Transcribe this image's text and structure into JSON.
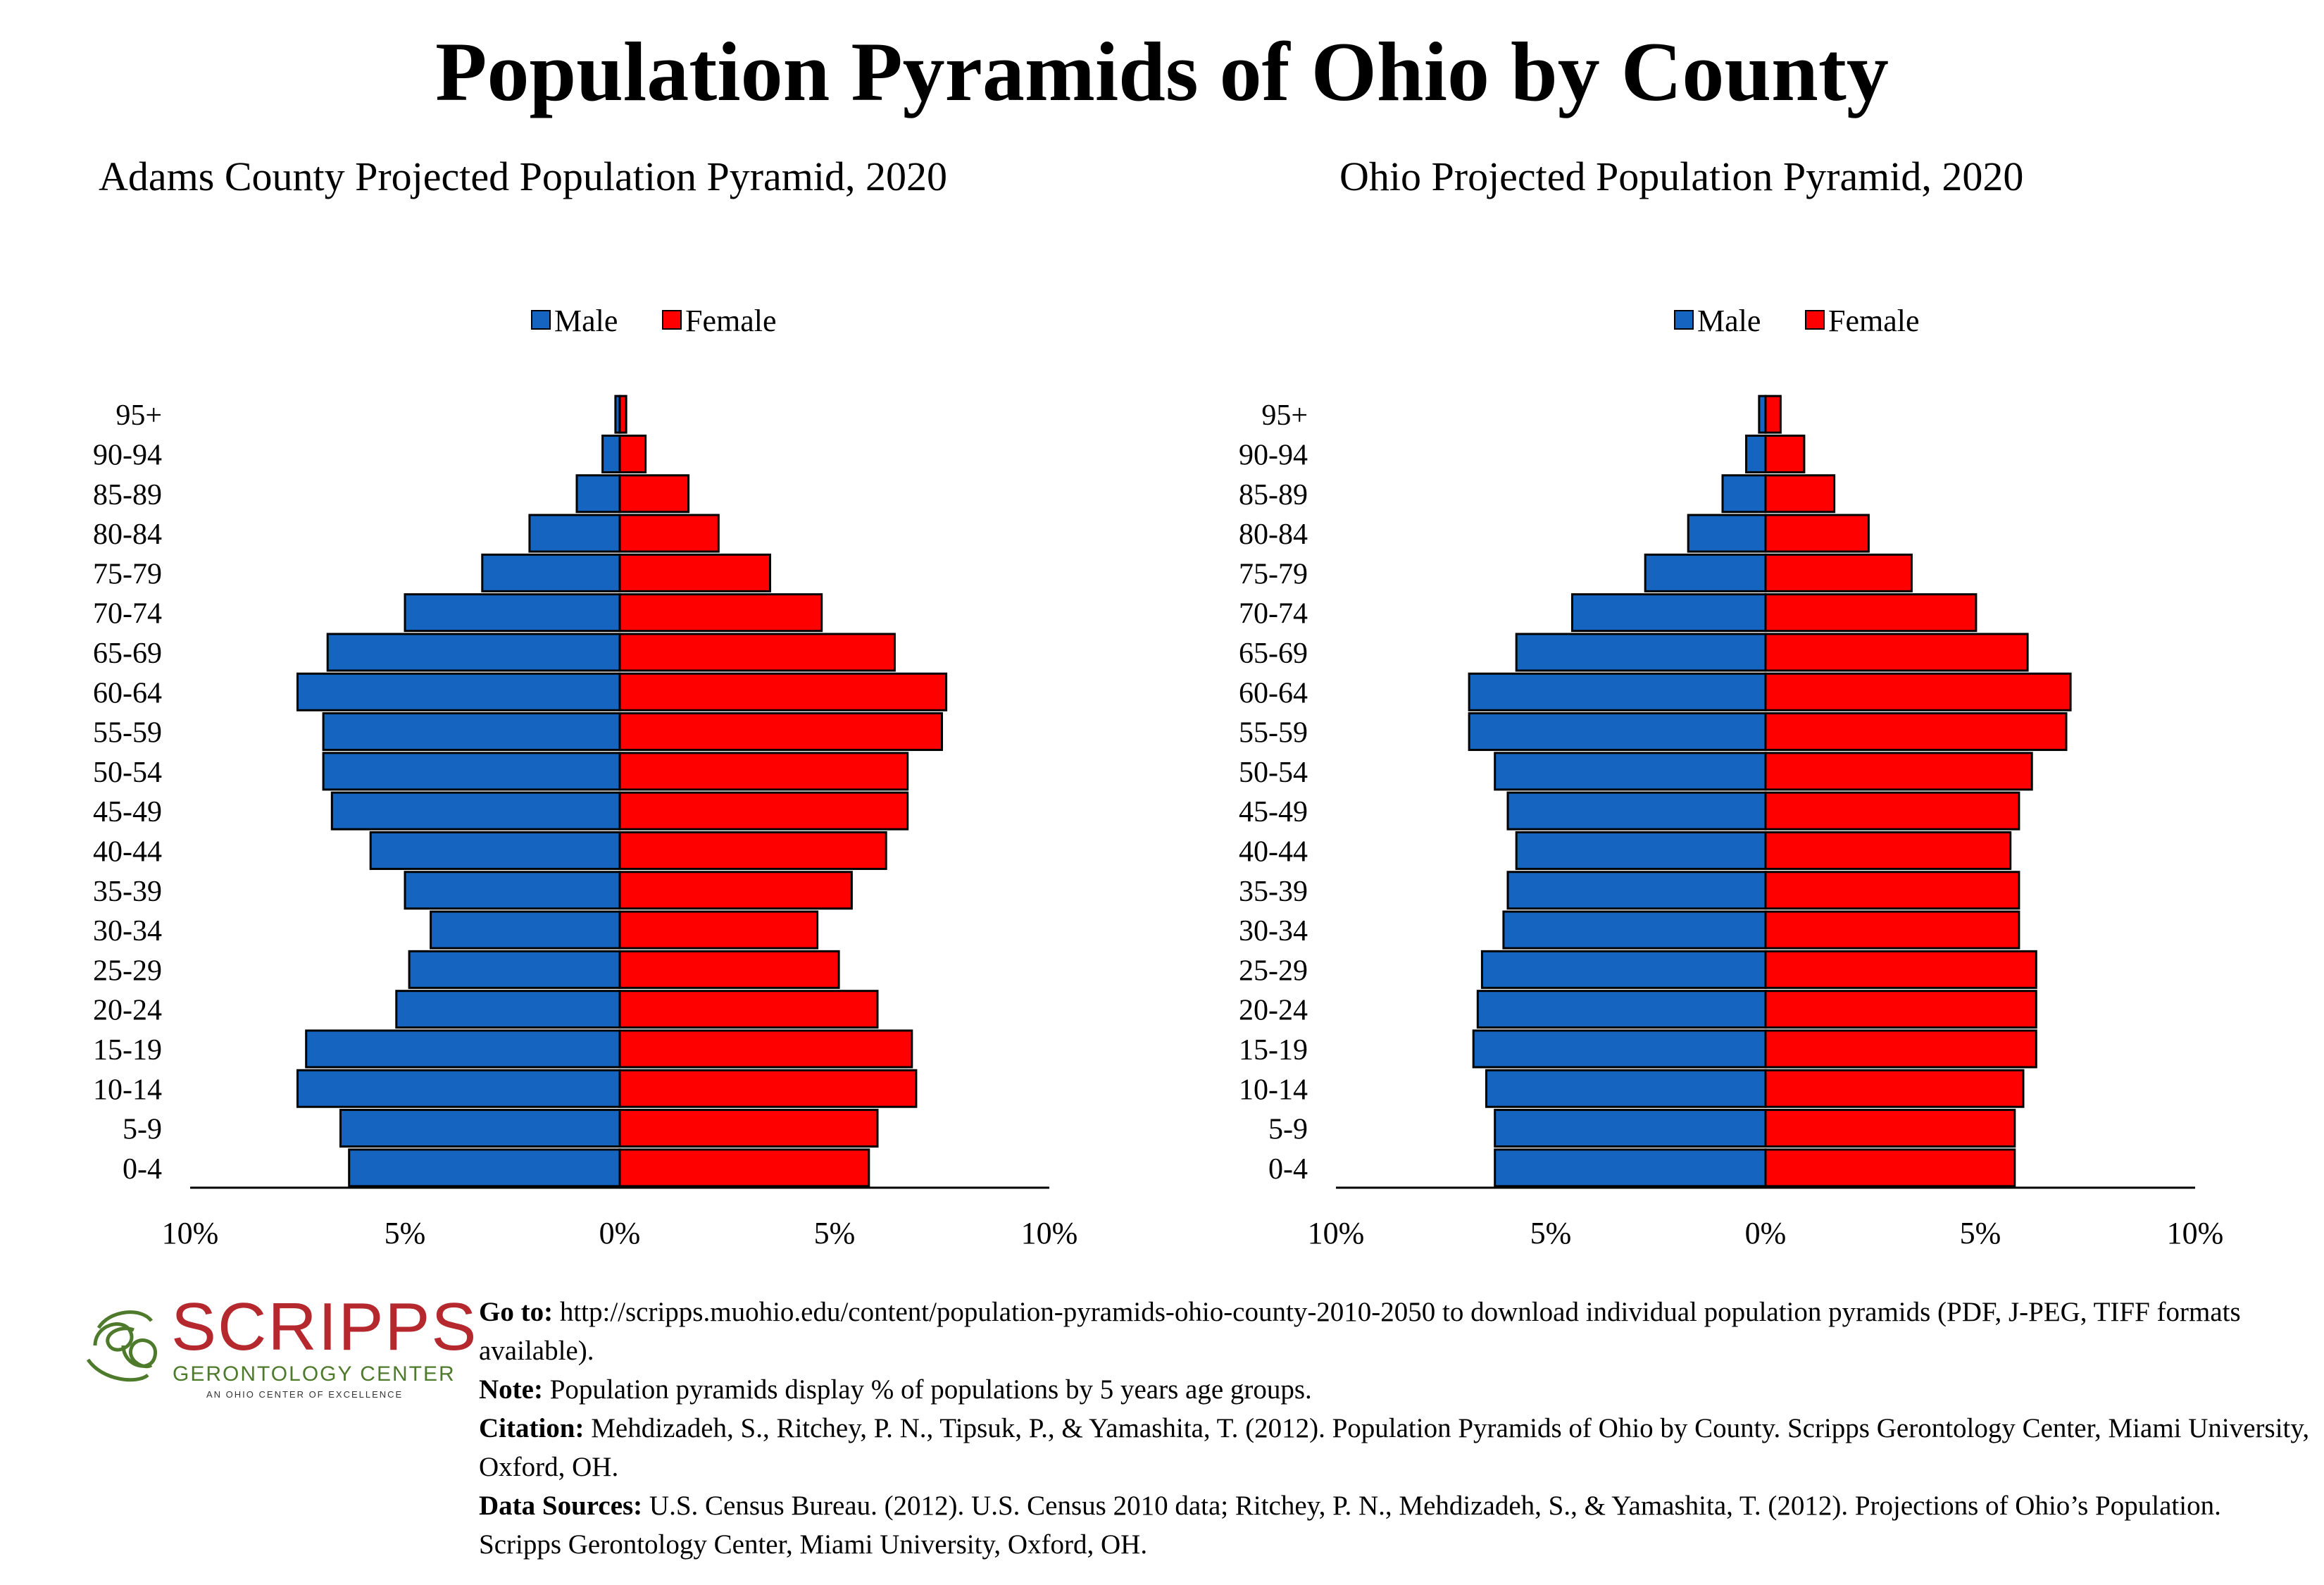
{
  "title": "Population Pyramids of Ohio by County",
  "colors": {
    "male": "#1565c0",
    "female": "#ff0000",
    "logo_red": "#b4282e",
    "logo_green": "#4e7a2b"
  },
  "chart_data": [
    {
      "type": "bar",
      "orientation": "horizontal-pyramid",
      "title": "Adams County Projected Population Pyramid, 2020",
      "categories": [
        "0-4",
        "5-9",
        "10-14",
        "15-19",
        "20-24",
        "25-29",
        "30-34",
        "35-39",
        "40-44",
        "45-49",
        "50-54",
        "55-59",
        "60-64",
        "65-69",
        "70-74",
        "75-79",
        "80-84",
        "85-89",
        "90-94",
        "95+"
      ],
      "series": [
        {
          "name": "Male",
          "values": [
            6.3,
            6.5,
            7.5,
            7.3,
            5.2,
            4.9,
            4.4,
            5.0,
            5.8,
            6.7,
            6.9,
            6.9,
            7.5,
            6.8,
            5.0,
            3.2,
            2.1,
            1.0,
            0.4,
            0.1
          ]
        },
        {
          "name": "Female",
          "values": [
            5.8,
            6.0,
            6.9,
            6.8,
            6.0,
            5.1,
            4.6,
            5.4,
            6.2,
            6.7,
            6.7,
            7.5,
            7.6,
            6.4,
            4.7,
            3.5,
            2.3,
            1.6,
            0.6,
            0.15
          ]
        }
      ],
      "xticks": [
        "10%",
        "5%",
        "0%",
        "5%",
        "10%"
      ],
      "xlim": [
        -10,
        10
      ],
      "legend": "top-center"
    },
    {
      "type": "bar",
      "orientation": "horizontal-pyramid",
      "title": "Ohio Projected Population Pyramid, 2020",
      "categories": [
        "0-4",
        "5-9",
        "10-14",
        "15-19",
        "20-24",
        "25-29",
        "30-34",
        "35-39",
        "40-44",
        "45-49",
        "50-54",
        "55-59",
        "60-64",
        "65-69",
        "70-74",
        "75-79",
        "80-84",
        "85-89",
        "90-94",
        "95+"
      ],
      "series": [
        {
          "name": "Male",
          "values": [
            6.3,
            6.3,
            6.5,
            6.8,
            6.7,
            6.6,
            6.1,
            6.0,
            5.8,
            6.0,
            6.3,
            6.9,
            6.9,
            5.8,
            4.5,
            2.8,
            1.8,
            1.0,
            0.45,
            0.15
          ]
        },
        {
          "name": "Female",
          "values": [
            5.8,
            5.8,
            6.0,
            6.3,
            6.3,
            6.3,
            5.9,
            5.9,
            5.7,
            5.9,
            6.2,
            7.0,
            7.1,
            6.1,
            4.9,
            3.4,
            2.4,
            1.6,
            0.9,
            0.35
          ]
        }
      ],
      "xticks": [
        "10%",
        "5%",
        "0%",
        "5%",
        "10%"
      ],
      "xlim": [
        -10,
        10
      ],
      "legend": "top-center"
    }
  ],
  "logo": {
    "word": "SCRIPPS",
    "sub": "GERONTOLOGY CENTER",
    "tag": "AN OHIO CENTER OF EXCELLENCE"
  },
  "notes": [
    {
      "label": "Go to:",
      "text": " http://scripps.muohio.edu/content/population-pyramids-ohio-county-2010-2050 to download individual population pyramids (PDF, J-PEG, TIFF formats available)."
    },
    {
      "label": "Note:",
      "text": " Population pyramids display % of populations by 5 years age groups."
    },
    {
      "label": "Citation:",
      "text": " Mehdizadeh, S., Ritchey, P. N., Tipsuk, P., & Yamashita, T. (2012). Population Pyramids of Ohio by County. Scripps Gerontology Center, Miami University, Oxford, OH."
    },
    {
      "label": "Data Sources:",
      "text": " U.S. Census Bureau. (2012). U.S. Census 2010 data; Ritchey, P. N., Mehdizadeh, S., & Yamashita, T. (2012). Projections of Ohio’s Population. Scripps Gerontology Center, Miami University, Oxford, OH."
    }
  ]
}
